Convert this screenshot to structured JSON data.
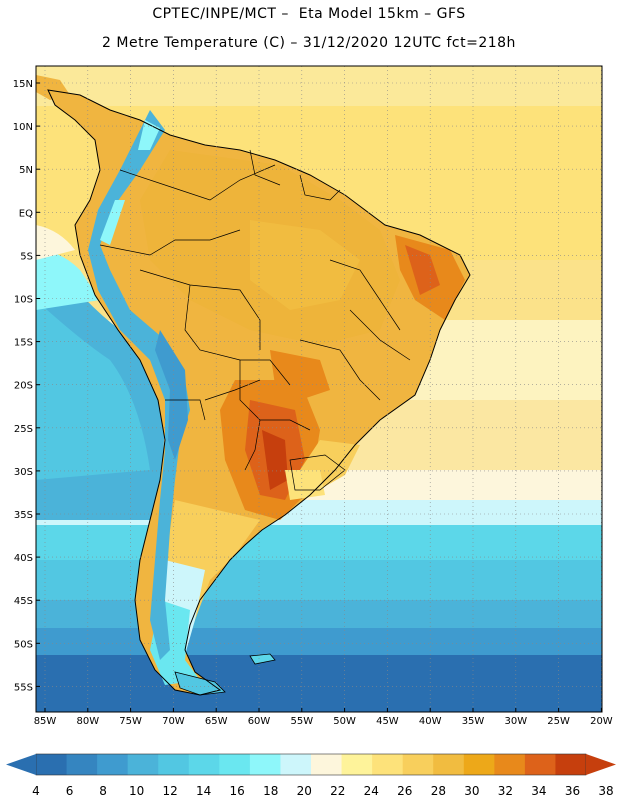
{
  "header": {
    "title_line1": "CPTEC/INPE/MCT –  Eta Model 15km – GFS",
    "title_line2": "2 Metre Temperature (C) – 31/12/2020 12UTC fct=218h"
  },
  "map": {
    "region": "South America",
    "variable": "2 Metre Temperature",
    "units": "C",
    "lat_labels": [
      "15N",
      "10N",
      "5N",
      "EQ",
      "5S",
      "10S",
      "15S",
      "20S",
      "25S",
      "30S",
      "35S",
      "40S",
      "45S",
      "50S",
      "55S"
    ],
    "lon_labels": [
      "85W",
      "80W",
      "75W",
      "70W",
      "65W",
      "60W",
      "55W",
      "50W",
      "45W",
      "40W",
      "35W",
      "30W",
      "25W",
      "20W"
    ]
  },
  "colorbar": {
    "ticks": [
      "4",
      "6",
      "8",
      "10",
      "12",
      "14",
      "16",
      "18",
      "20",
      "22",
      "24",
      "26",
      "28",
      "30",
      "32",
      "34",
      "36",
      "38"
    ],
    "colors": [
      "#2a6fb0",
      "#3585c0",
      "#3f9bcf",
      "#4bb3d9",
      "#52c7e2",
      "#5cd7e9",
      "#6ae7f0",
      "#8ef7fa",
      "#cdf6fb",
      "#fdf6dc",
      "#fef39a",
      "#fde27a",
      "#f8cf5c",
      "#f1bc40",
      "#eda819",
      "#e8891b",
      "#dd621a",
      "#c63f0d"
    ],
    "left_arrow_color": "#2a6fb0",
    "right_arrow_color": "#c63f0d"
  }
}
